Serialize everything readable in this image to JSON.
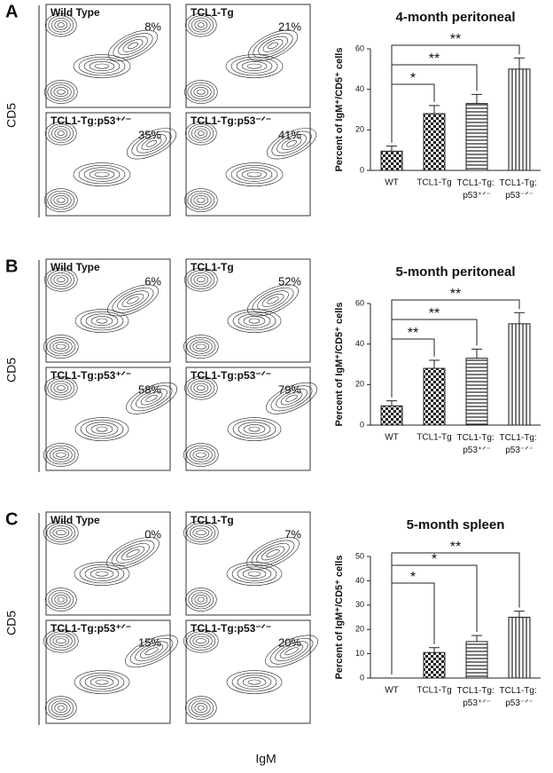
{
  "x_label": "IgM",
  "panels": [
    {
      "letter": "A",
      "y_label": "CD5",
      "plots": [
        {
          "label": "Wild Type",
          "percent": "8%"
        },
        {
          "label": "TCL1-Tg",
          "percent": "21%"
        },
        {
          "label": "TCL1-Tg:p53⁺ᐟ⁻",
          "percent": "35%"
        },
        {
          "label": "TCL1-Tg:p53⁻ᐟ⁻",
          "percent": "41%"
        }
      ]
    },
    {
      "letter": "B",
      "y_label": "CD5",
      "plots": [
        {
          "label": "Wild Type",
          "percent": "6%"
        },
        {
          "label": "TCL1-Tg",
          "percent": "52%"
        },
        {
          "label": "TCL1-Tg:p53⁺ᐟ⁻",
          "percent": "58%"
        },
        {
          "label": "TCL1-Tg:p53⁻ᐟ⁻",
          "percent": "79%"
        }
      ]
    },
    {
      "letter": "C",
      "y_label": "CD5",
      "plots": [
        {
          "label": "Wild Type",
          "percent": "0%"
        },
        {
          "label": "TCL1-Tg",
          "percent": "7%"
        },
        {
          "label": "TCL1-Tg:p53⁺ᐟ⁻",
          "percent": "15%"
        },
        {
          "label": "TCL1-Tg:p53⁻ᐟ⁻",
          "percent": "20%"
        }
      ]
    }
  ],
  "chart_data": [
    {
      "type": "bar",
      "title": "4-month peritoneal",
      "y_label": "Percent of IgM⁺/CD5⁺ cells",
      "categories": [
        "WT",
        "TCL1-Tg",
        "TCL1-Tg: p53⁺ᐟ⁻",
        "TCL1-Tg: p53⁻ᐟ⁻"
      ],
      "values": [
        9.5,
        28,
        33,
        50
      ],
      "errors": [
        2.5,
        4,
        4.5,
        5.5
      ],
      "patterns": [
        "checker",
        "checker",
        "hlines",
        "vlines"
      ],
      "ylim": [
        0,
        60
      ],
      "yticks": [
        0,
        20,
        40,
        60
      ],
      "significance": [
        {
          "label": "*",
          "from": 0,
          "to": 1
        },
        {
          "label": "**",
          "from": 0,
          "to": 2
        },
        {
          "label": "**",
          "from": 0,
          "to": 3
        }
      ]
    },
    {
      "type": "bar",
      "title": "5-month peritoneal",
      "y_label": "Percent of IgM⁺/CD5⁺ cells",
      "categories": [
        "WT",
        "TCL1-Tg",
        "TCL1-Tg: p53⁺ᐟ⁻",
        "TCL1-Tg: p53⁻ᐟ⁻"
      ],
      "values": [
        9.5,
        28,
        33,
        50
      ],
      "errors": [
        2.5,
        4,
        4.5,
        5.5
      ],
      "patterns": [
        "checker",
        "checker",
        "hlines",
        "vlines"
      ],
      "ylim": [
        0,
        60
      ],
      "yticks": [
        0,
        20,
        40,
        60
      ],
      "significance": [
        {
          "label": "**",
          "from": 0,
          "to": 1
        },
        {
          "label": "**",
          "from": 0,
          "to": 2
        },
        {
          "label": "**",
          "from": 0,
          "to": 3
        }
      ]
    },
    {
      "type": "bar",
      "title": "5-month spleen",
      "y_label": "Percent of IgM⁺/CD5⁺ cells",
      "categories": [
        "WT",
        "TCL1-Tg",
        "TCL1-Tg: p53⁺ᐟ⁻",
        "TCL1-Tg: p53⁻ᐟ⁻"
      ],
      "values": [
        0,
        10.5,
        15,
        25
      ],
      "errors": [
        0,
        2,
        2.5,
        2.5
      ],
      "patterns": [
        "checker",
        "checker",
        "hlines",
        "vlines"
      ],
      "ylim": [
        0,
        50
      ],
      "yticks": [
        0,
        10,
        20,
        30,
        40,
        50
      ],
      "significance": [
        {
          "label": "*",
          "from": 0,
          "to": 1
        },
        {
          "label": "*",
          "from": 0,
          "to": 2
        },
        {
          "label": "**",
          "from": 0,
          "to": 3
        }
      ]
    }
  ]
}
